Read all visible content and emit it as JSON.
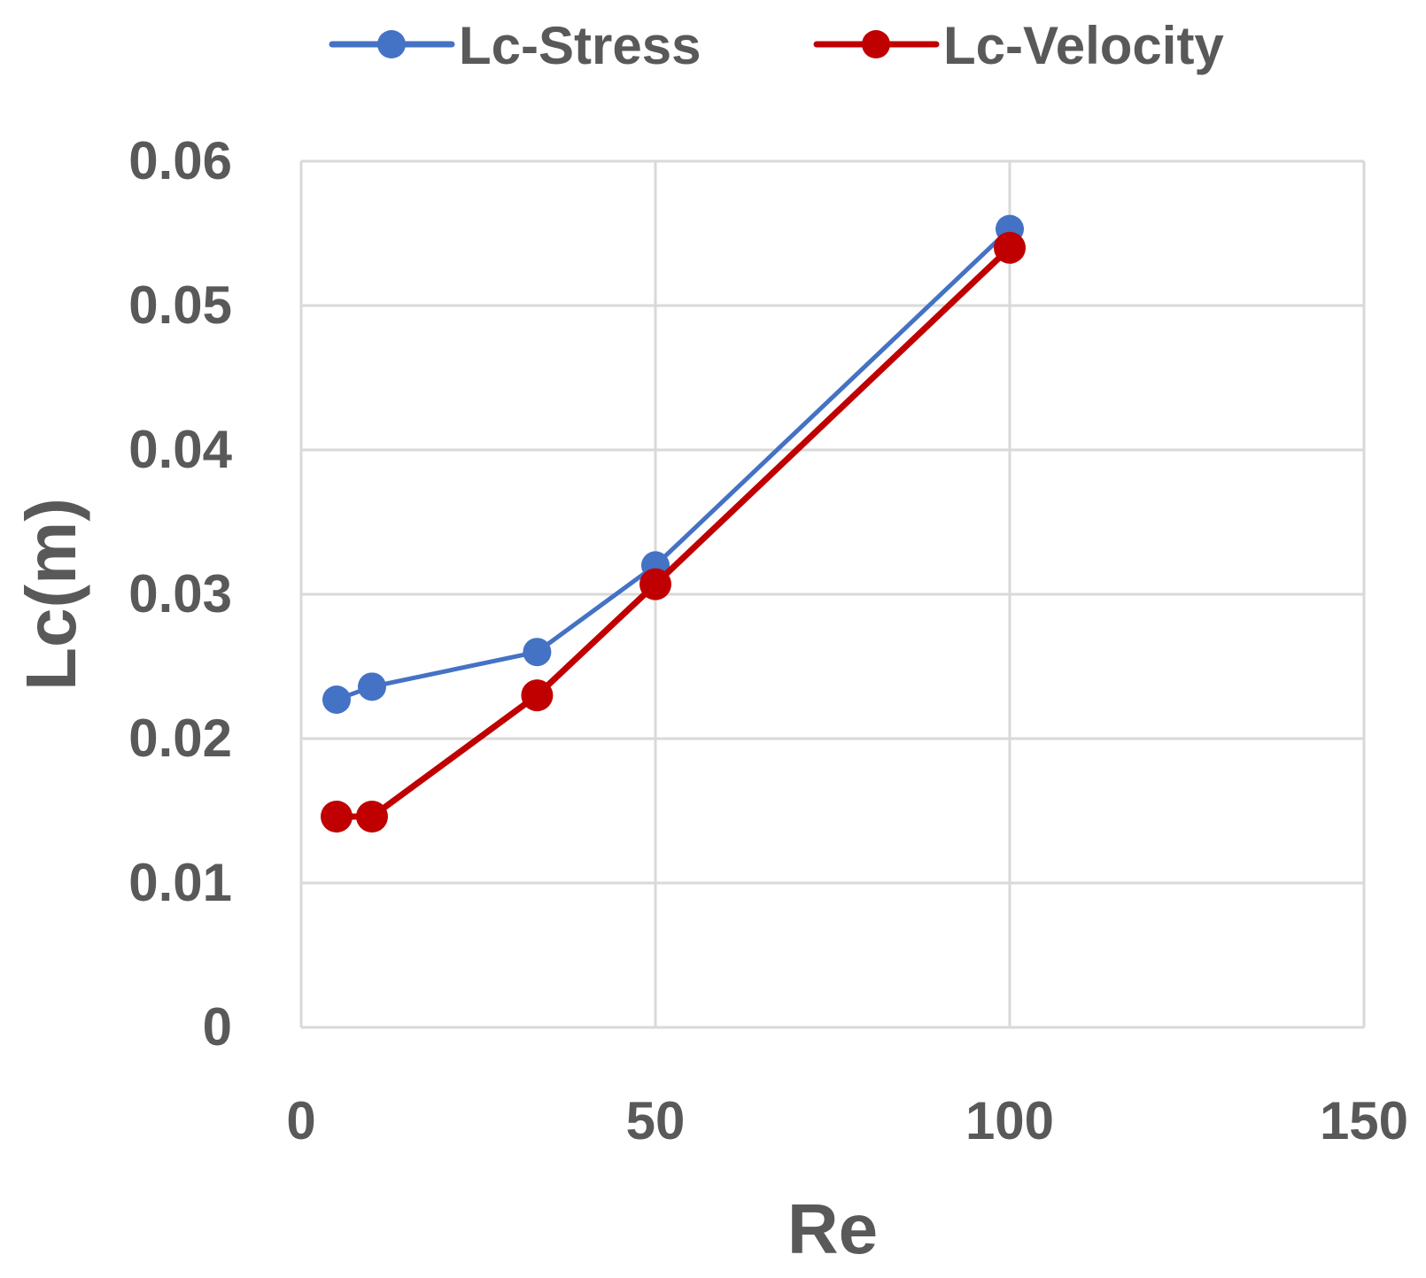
{
  "chart_data": {
    "type": "line",
    "title": "",
    "xlabel": "Re",
    "ylabel": "Lc(m)",
    "xlim": [
      0,
      150
    ],
    "ylim": [
      0,
      0.06
    ],
    "x_ticks": [
      0,
      50,
      100,
      150
    ],
    "x_tick_labels": [
      "0",
      "50",
      "100",
      "150"
    ],
    "y_ticks": [
      0,
      0.01,
      0.02,
      0.03,
      0.04,
      0.05,
      0.06
    ],
    "y_tick_labels": [
      "0",
      "0.01",
      "0.02",
      "0.03",
      "0.04",
      "0.05",
      "0.06"
    ],
    "grid": true,
    "legend_position": "top",
    "series": [
      {
        "name": "Lc-Stress",
        "color": "#4472C4",
        "x": [
          5,
          10,
          33.3,
          50,
          100
        ],
        "values": [
          0.0227,
          0.0236,
          0.026,
          0.032,
          0.0553
        ]
      },
      {
        "name": "Lc-Velocity",
        "color": "#C00000",
        "x": [
          5,
          10,
          33.3,
          50,
          100
        ],
        "values": [
          0.0146,
          0.0146,
          0.023,
          0.0307,
          0.054
        ]
      }
    ]
  }
}
